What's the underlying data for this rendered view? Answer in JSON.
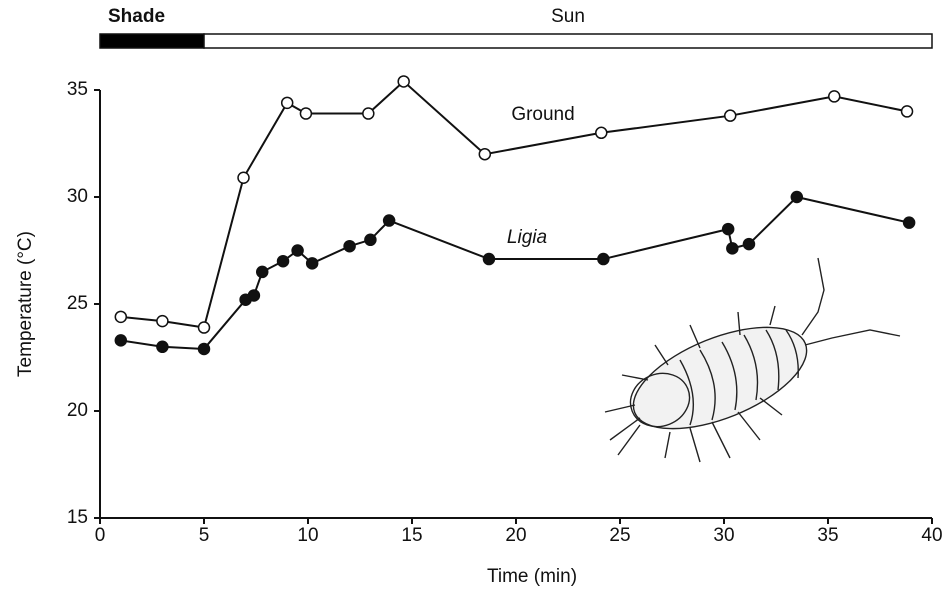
{
  "chart_data": {
    "type": "line",
    "x_label": "Time (min)",
    "y_label": "Temperature (°C)",
    "xlim": [
      0,
      40
    ],
    "xticks": [
      0,
      5,
      10,
      15,
      20,
      25,
      30,
      35,
      40
    ],
    "ylim": [
      15,
      35
    ],
    "yticks": [
      15,
      20,
      25,
      30,
      35
    ],
    "bands": [
      {
        "label": "Shade",
        "start": 0,
        "end": 5,
        "color": "#000000"
      },
      {
        "label": "Sun",
        "start": 5,
        "end": 40,
        "color": "#ffffff"
      }
    ],
    "series": [
      {
        "name": "Ground",
        "color": "#111111",
        "marker": "open",
        "x": [
          1.0,
          3.0,
          5.0,
          6.9,
          9.0,
          9.9,
          12.9,
          14.6,
          18.5,
          24.1,
          30.3,
          35.3,
          38.8
        ],
        "values": [
          24.4,
          24.2,
          23.9,
          30.9,
          34.4,
          33.9,
          33.9,
          35.4,
          32.0,
          33.0,
          33.8,
          34.7,
          34.0
        ]
      },
      {
        "name": "Ligia",
        "color": "#111111",
        "marker": "filled",
        "italic": true,
        "x": [
          1.0,
          3.0,
          5.0,
          7.0,
          7.4,
          7.8,
          8.8,
          9.5,
          10.2,
          12.0,
          13.0,
          13.9,
          18.7,
          24.2,
          30.2,
          30.4,
          31.2,
          33.5,
          38.9
        ],
        "values": [
          23.3,
          23.0,
          22.9,
          25.2,
          25.4,
          26.5,
          27.0,
          27.5,
          26.9,
          27.7,
          28.0,
          28.9,
          27.1,
          27.1,
          28.5,
          27.6,
          27.8,
          30.0,
          28.8
        ]
      }
    ]
  }
}
